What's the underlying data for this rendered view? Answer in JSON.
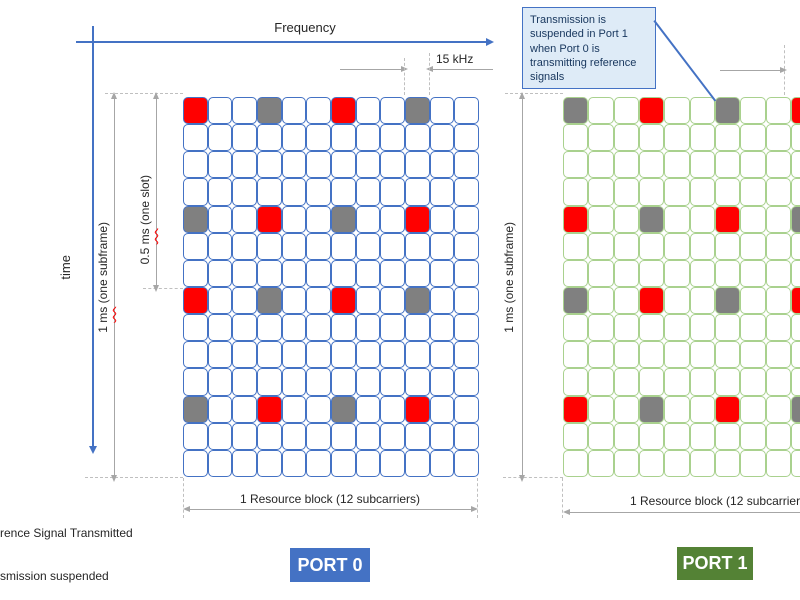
{
  "axes": {
    "frequency": "Frequency",
    "time": "time"
  },
  "annotations": {
    "subcarrier_spacing": "15 kHz",
    "subframe": {
      "prefix": "1 ",
      "unit": "ms",
      "suffix": " (one subframe)",
      "full": "1 ms (one subframe)"
    },
    "slot": {
      "prefix": "0.5 ",
      "unit": "ms",
      "suffix": " (one slot)"
    },
    "resource_block": "1 Resource block (12 subcarriers)"
  },
  "callout": {
    "text": "Transmission is suspended in Port 1 when Port 0 is transmitting reference signals"
  },
  "legend": {
    "items": [
      {
        "label": "rence Signal Transmitted",
        "color": "#FF0000"
      },
      {
        "label": "smission suspended",
        "color": "#808080"
      }
    ]
  },
  "ports": [
    {
      "label": "PORT 0",
      "badge_color": "#4472C4",
      "grid_color": "#4472C4"
    },
    {
      "label": "PORT 1",
      "badge_color": "#548235",
      "grid_color": "#A9D18E"
    }
  ],
  "grid": {
    "rows": 14,
    "cols": 12
  },
  "colors": {
    "reference_signal": "#FF0000",
    "suspended": "#808080",
    "axis_blue": "#4472C4",
    "measure_gray": "#A6A6A6",
    "callout_bg": "#DEEBF7",
    "callout_border": "#4472C4"
  },
  "reference_cells": {
    "port0": [
      {
        "row": 0,
        "col": 0,
        "type": "rs"
      },
      {
        "row": 0,
        "col": 3,
        "type": "sus"
      },
      {
        "row": 0,
        "col": 6,
        "type": "rs"
      },
      {
        "row": 0,
        "col": 9,
        "type": "sus"
      },
      {
        "row": 4,
        "col": 0,
        "type": "sus"
      },
      {
        "row": 4,
        "col": 3,
        "type": "rs"
      },
      {
        "row": 4,
        "col": 6,
        "type": "sus"
      },
      {
        "row": 4,
        "col": 9,
        "type": "rs"
      },
      {
        "row": 7,
        "col": 0,
        "type": "rs"
      },
      {
        "row": 7,
        "col": 3,
        "type": "sus"
      },
      {
        "row": 7,
        "col": 6,
        "type": "rs"
      },
      {
        "row": 7,
        "col": 9,
        "type": "sus"
      },
      {
        "row": 11,
        "col": 0,
        "type": "sus"
      },
      {
        "row": 11,
        "col": 3,
        "type": "rs"
      },
      {
        "row": 11,
        "col": 6,
        "type": "sus"
      },
      {
        "row": 11,
        "col": 9,
        "type": "rs"
      }
    ],
    "port1": [
      {
        "row": 0,
        "col": 0,
        "type": "sus"
      },
      {
        "row": 0,
        "col": 3,
        "type": "rs"
      },
      {
        "row": 0,
        "col": 6,
        "type": "sus"
      },
      {
        "row": 0,
        "col": 9,
        "type": "rs"
      },
      {
        "row": 4,
        "col": 0,
        "type": "rs"
      },
      {
        "row": 4,
        "col": 3,
        "type": "sus"
      },
      {
        "row": 4,
        "col": 6,
        "type": "rs"
      },
      {
        "row": 4,
        "col": 9,
        "type": "sus"
      },
      {
        "row": 7,
        "col": 0,
        "type": "sus"
      },
      {
        "row": 7,
        "col": 3,
        "type": "rs"
      },
      {
        "row": 7,
        "col": 6,
        "type": "sus"
      },
      {
        "row": 7,
        "col": 9,
        "type": "rs"
      },
      {
        "row": 11,
        "col": 0,
        "type": "rs"
      },
      {
        "row": 11,
        "col": 3,
        "type": "sus"
      },
      {
        "row": 11,
        "col": 6,
        "type": "rs"
      },
      {
        "row": 11,
        "col": 9,
        "type": "sus"
      }
    ]
  }
}
